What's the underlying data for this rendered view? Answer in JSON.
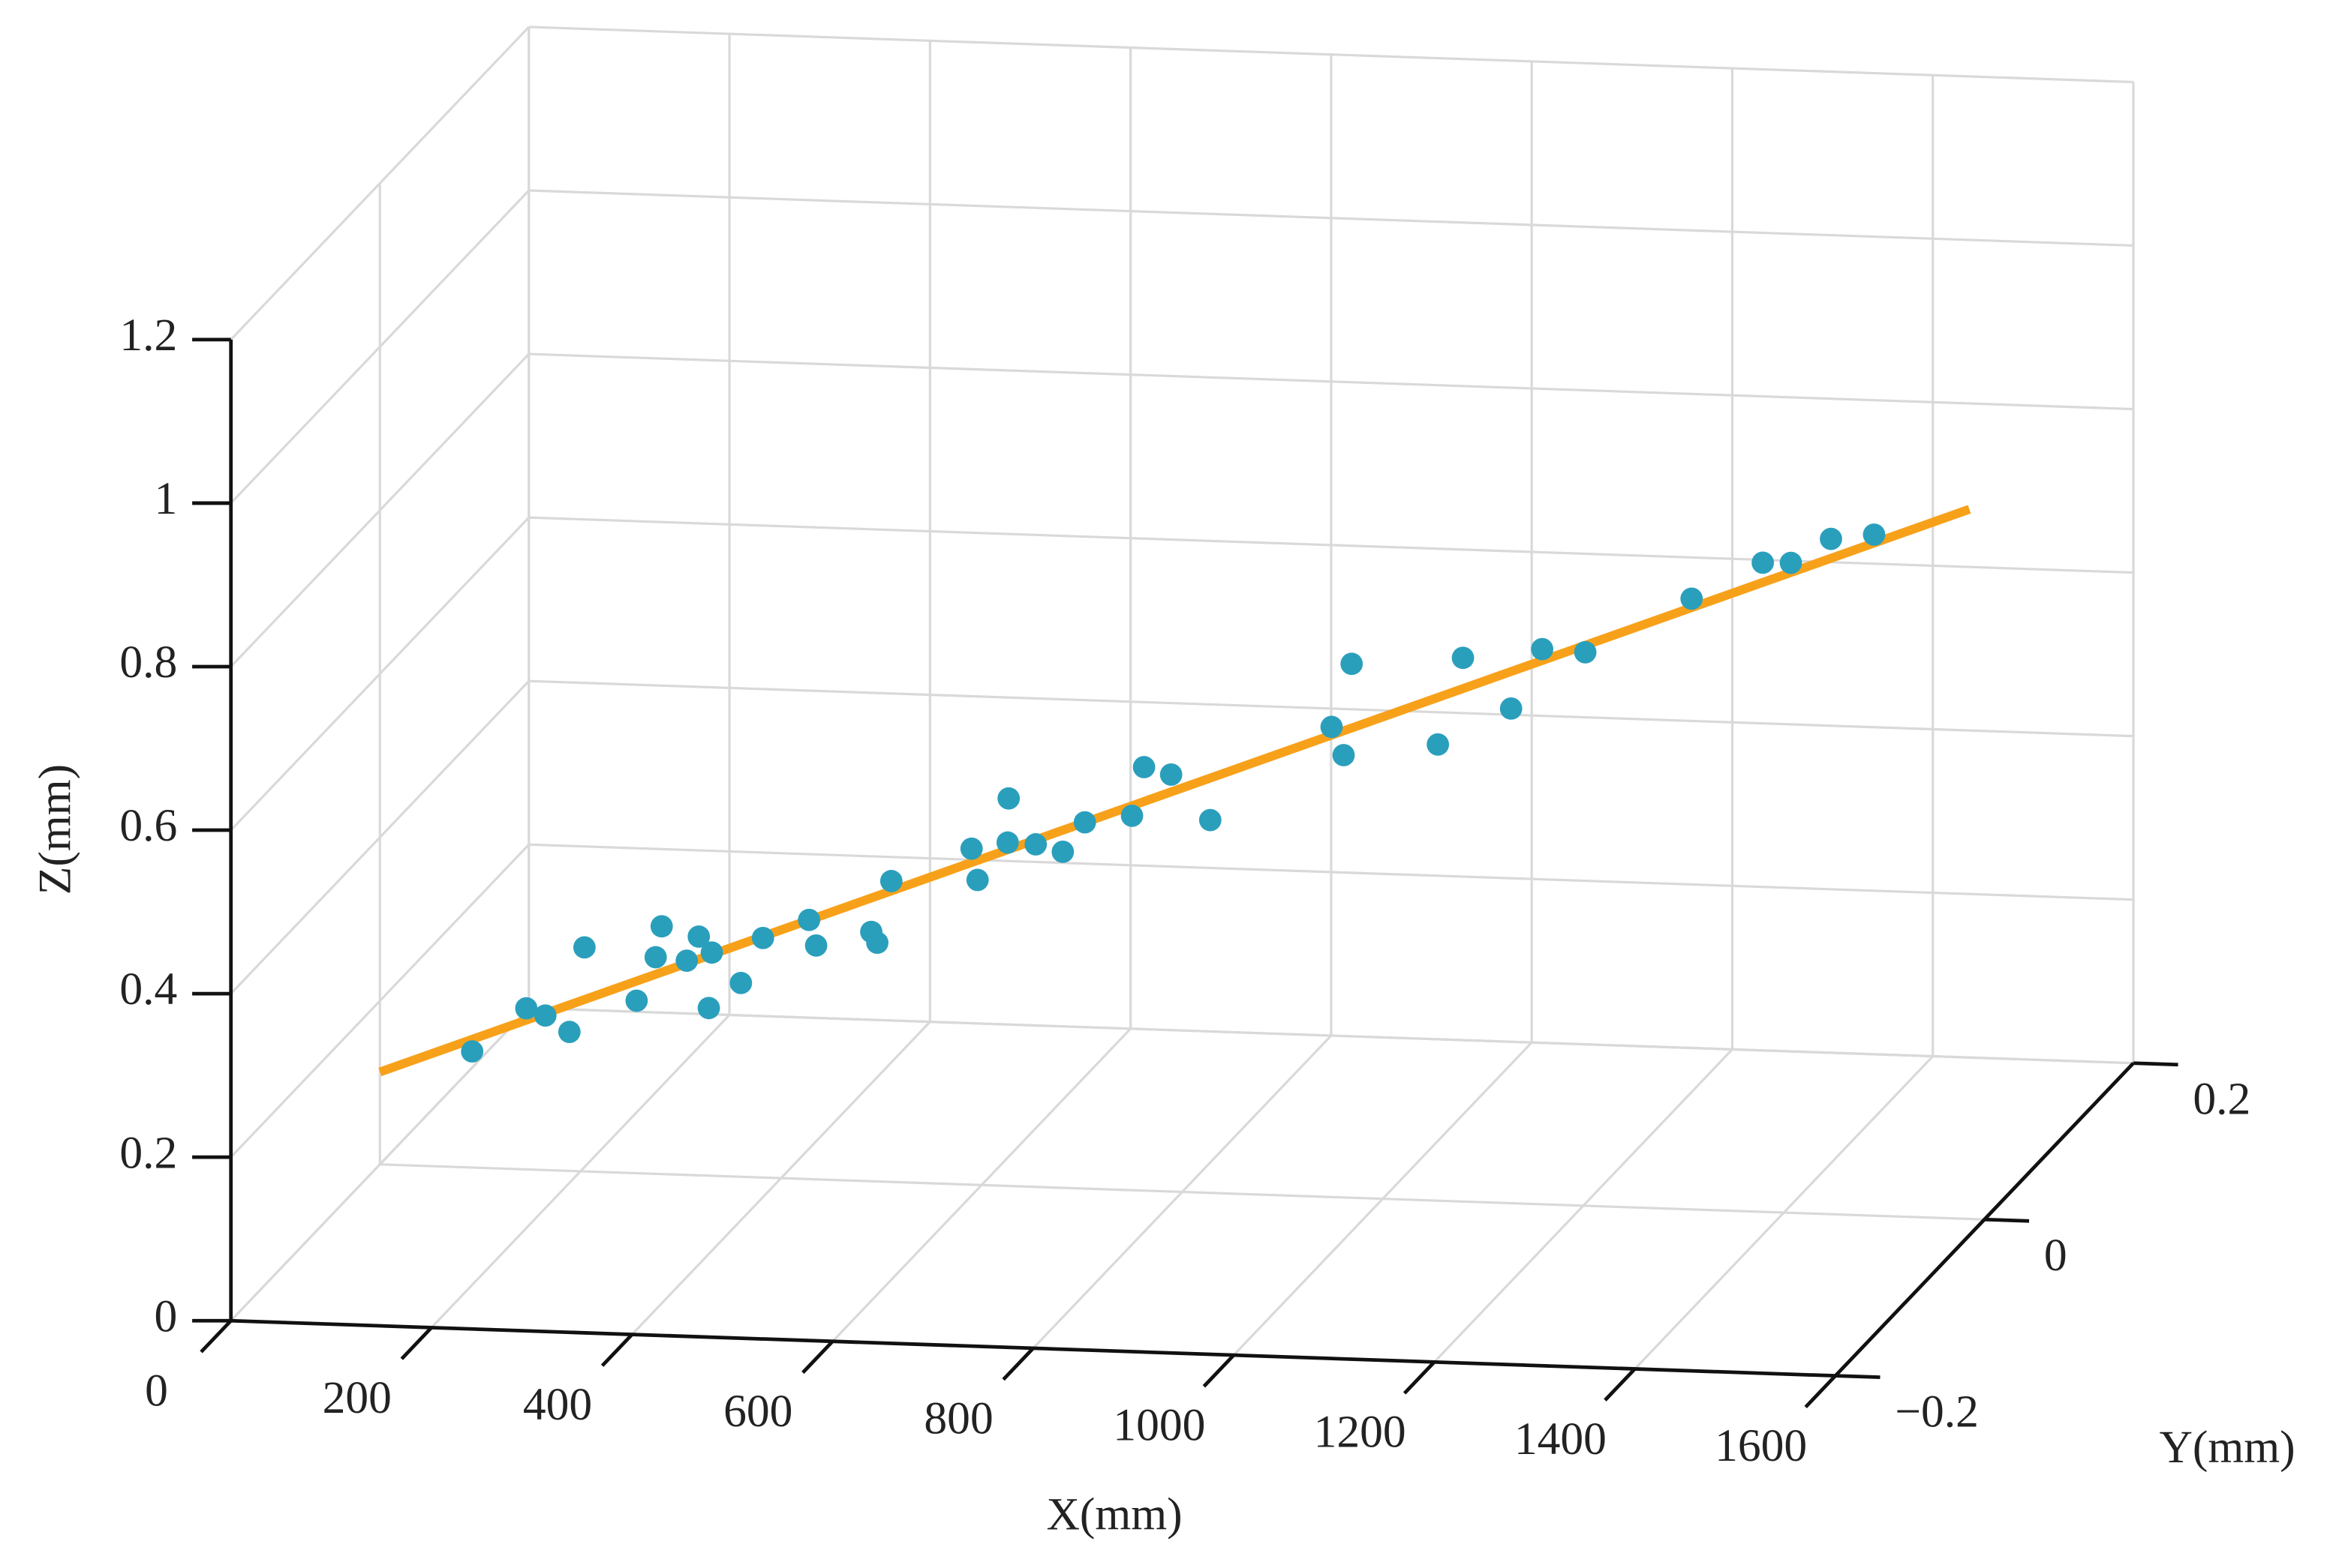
{
  "chart_data": {
    "type": "scatter",
    "xlabel": "X(mm)",
    "ylabel": "Y(mm)",
    "zlabel": "Z(mm)",
    "xlim": [
      0,
      1600
    ],
    "ylim": [
      -0.2,
      0.2
    ],
    "zlim": [
      0,
      1.2
    ],
    "xticks": [
      0,
      200,
      400,
      600,
      800,
      1000,
      1200,
      1400,
      1600
    ],
    "yticks": [
      {
        "value": -0.2,
        "label": "−0.2"
      },
      0,
      0.2
    ],
    "zticks": [
      0,
      0.2,
      0.4,
      0.6,
      0.8,
      1,
      1.2
    ],
    "grid": true,
    "series": [
      {
        "type": "line",
        "color": "#f7a11a",
        "x": [
          0,
          1585
        ],
        "y": [
          0,
          0
        ],
        "z": [
          0.113,
          0.868
        ]
      },
      {
        "type": "scatter",
        "color": "#2a9fbc",
        "x": [
          92,
          146,
          165,
          189,
          204,
          256,
          275,
          281,
          306,
          318,
          328,
          331,
          360,
          382,
          428,
          435,
          490,
          496,
          510,
          590,
          596,
          626,
          627,
          654,
          681,
          703,
          750,
          762,
          789,
          828,
          949,
          961,
          969,
          1055,
          1080,
          1128,
          1159,
          1202,
          1308,
          1379,
          1407,
          1447,
          1490
        ],
        "y": [
          0,
          0,
          0,
          0,
          0,
          0,
          0,
          0,
          0,
          0,
          0,
          0,
          0,
          0,
          0,
          0,
          0,
          0,
          0,
          0,
          0,
          0,
          0,
          0,
          0,
          0,
          0,
          0,
          0,
          0,
          0,
          0,
          0,
          0,
          0,
          0,
          0,
          0,
          0,
          0,
          0,
          0,
          0
        ],
        "z": [
          0.142,
          0.197,
          0.189,
          0.17,
          0.274,
          0.211,
          0.265,
          0.303,
          0.262,
          0.292,
          0.205,
          0.273,
          0.237,
          0.293,
          0.317,
          0.286,
          0.305,
          0.292,
          0.368,
          0.411,
          0.373,
          0.42,
          0.474,
          0.419,
          0.411,
          0.448,
          0.458,
          0.518,
          0.51,
          0.456,
          0.575,
          0.541,
          0.653,
          0.558,
          0.665,
          0.605,
          0.679,
          0.677,
          0.747,
          0.794,
          0.795,
          0.826,
          0.833
        ]
      }
    ]
  }
}
